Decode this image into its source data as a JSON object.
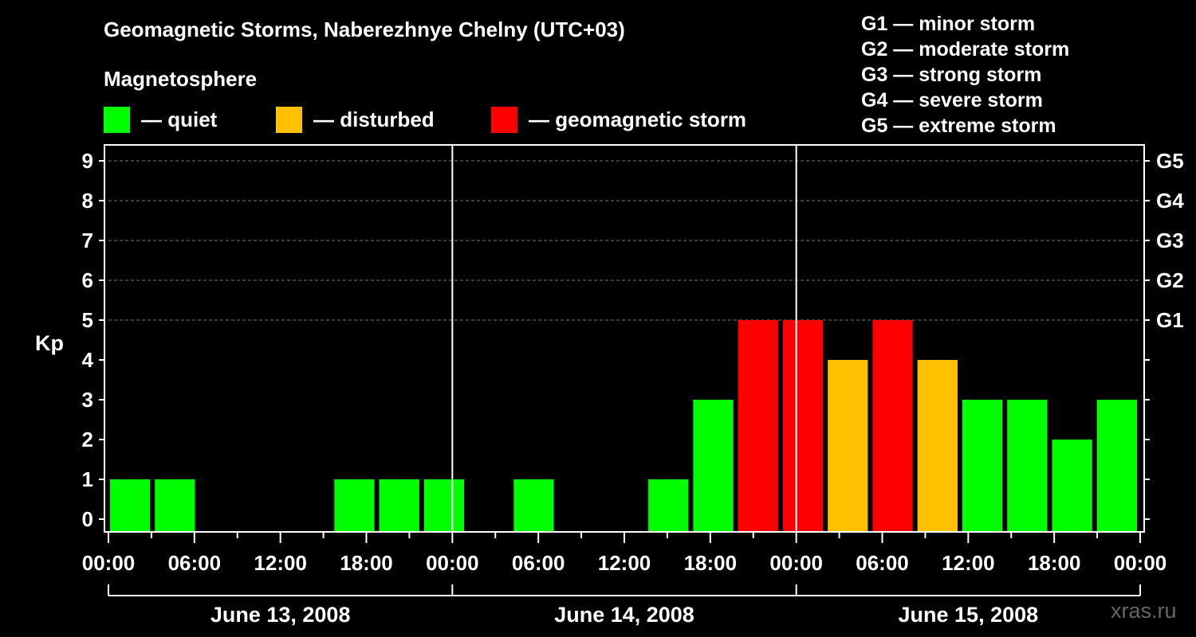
{
  "title": "Geomagnetic Storms, Naberezhnye Chelny (UTC+03)",
  "subtitle": "Magnetosphere",
  "legend": [
    {
      "label": "— quiet",
      "color": "#00ff00"
    },
    {
      "label": "— disturbed",
      "color": "#ffc000"
    },
    {
      "label": "— geomagnetic storm",
      "color": "#ff0000"
    }
  ],
  "storm_scale": [
    "G1 — minor storm",
    "G2 — moderate storm",
    "G3 — strong storm",
    "G4 — severe storm",
    "G5 — extreme storm"
  ],
  "watermark": "xras.ru",
  "chart_data": {
    "type": "bar",
    "title": "Geomagnetic Storms, Naberezhnye Chelny (UTC+03)",
    "ylabel": "Kp",
    "ylim": [
      0,
      9
    ],
    "y_ticks": [
      "0",
      "1",
      "2",
      "3",
      "4",
      "5",
      "6",
      "7",
      "8",
      "9"
    ],
    "right_ticks": [
      {
        "kp": 5,
        "label": "G1"
      },
      {
        "kp": 6,
        "label": "G2"
      },
      {
        "kp": 7,
        "label": "G3"
      },
      {
        "kp": 8,
        "label": "G4"
      },
      {
        "kp": 9,
        "label": "G5"
      }
    ],
    "x_tick_labels": [
      "00:00",
      "06:00",
      "12:00",
      "18:00",
      "00:00",
      "06:00",
      "12:00",
      "18:00",
      "00:00",
      "06:00",
      "12:00",
      "18:00",
      "00:00"
    ],
    "days": [
      "June 13, 2008",
      "June 14, 2008",
      "June 15, 2008"
    ],
    "interval_hours": 3,
    "values": [
      1,
      1,
      0,
      0,
      0,
      1,
      1,
      1,
      0,
      1,
      0,
      0,
      1,
      3,
      5,
      5,
      4,
      5,
      4,
      3,
      3,
      2,
      3
    ],
    "categories": [
      "quiet",
      "quiet",
      "quiet",
      "quiet",
      "quiet",
      "quiet",
      "quiet",
      "quiet",
      "quiet",
      "quiet",
      "quiet",
      "quiet",
      "quiet",
      "quiet",
      "storm",
      "storm",
      "disturbed",
      "storm",
      "disturbed",
      "quiet",
      "quiet",
      "quiet",
      "quiet"
    ],
    "colors": {
      "quiet": "#00ff00",
      "disturbed": "#ffc000",
      "storm": "#ff0000"
    }
  }
}
